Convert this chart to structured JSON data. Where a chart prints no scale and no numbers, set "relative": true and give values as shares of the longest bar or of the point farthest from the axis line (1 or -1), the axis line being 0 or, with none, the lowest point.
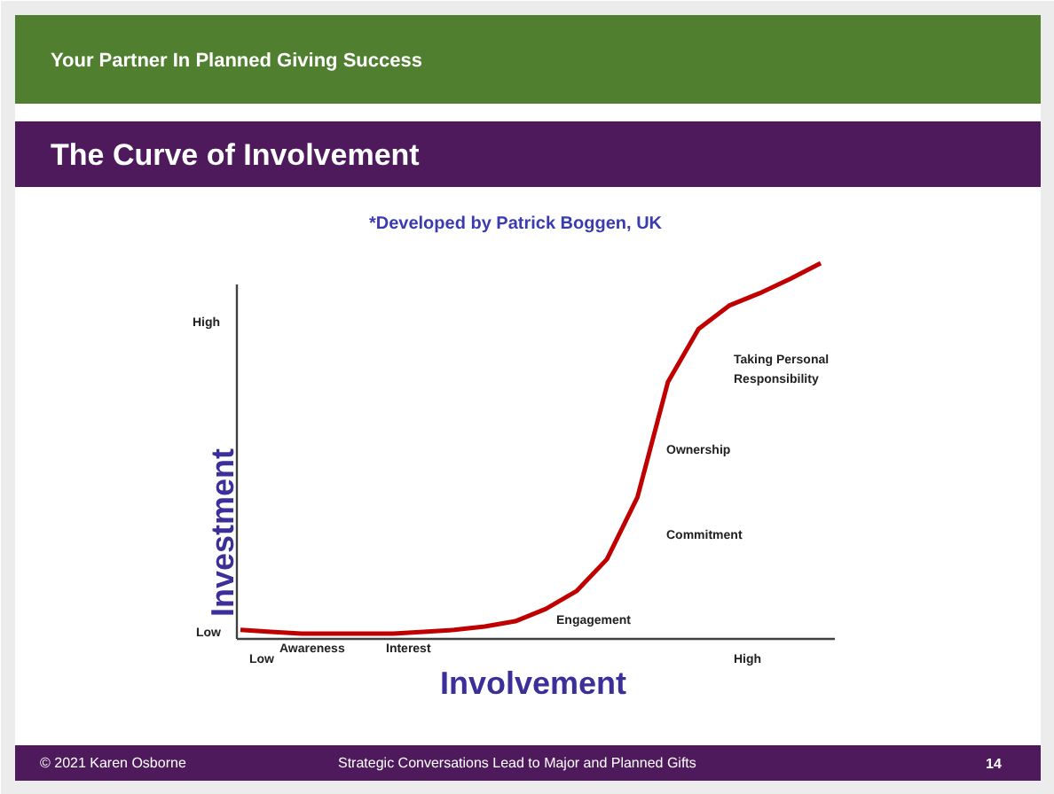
{
  "chart_data": {
    "type": "line",
    "relative": true,
    "title": "The Curve of Involvement",
    "subtitle": "*Developed by Patrick Boggen, UK",
    "xlabel": "Involvement",
    "ylabel": "Investment",
    "categories": [
      null,
      null,
      null,
      null,
      null,
      null,
      null,
      null,
      null,
      null,
      null,
      null,
      null,
      null,
      null,
      null,
      null,
      null,
      null,
      null
    ],
    "series": [
      {
        "color": "#c00000",
        "values": [
          0.024,
          0.019,
          0.014,
          0.014,
          0.014,
          0.014,
          0.019,
          0.024,
          0.033,
          0.047,
          0.08,
          0.127,
          0.212,
          0.377,
          0.684,
          0.825,
          0.887,
          0.92,
          0.958,
          1
        ]
      }
    ],
    "marker": "none",
    "line_style": "solid",
    "annotations": [
      "Your Partner In Planned Giving Success",
      "© 2021 Karen Osborne",
      "Strategic Conversations Lead to Major and Planned Gifts",
      "14",
      "Low",
      "High",
      "Low",
      "High",
      "Awareness",
      "Interest",
      "Engagement",
      "Commitment",
      "Ownership",
      "Taking Personal\nResponsibility"
    ]
  }
}
